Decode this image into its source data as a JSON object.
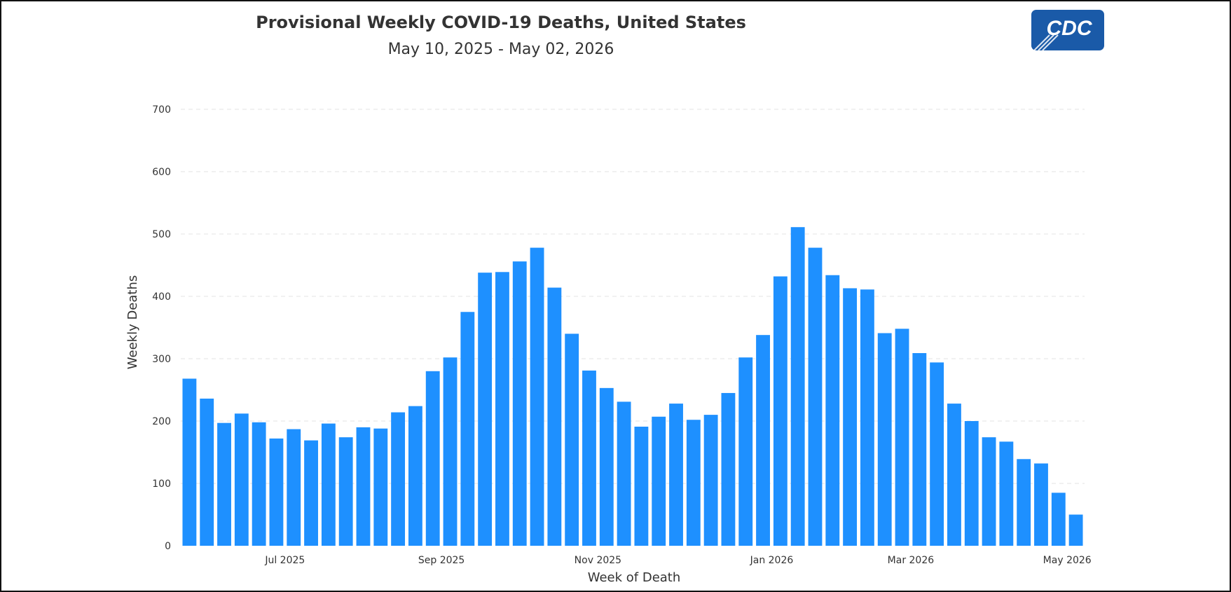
{
  "chart_data": {
    "type": "bar",
    "title": "Provisional Weekly COVID-19 Deaths, United States",
    "subtitle": "May 10, 2025 - May 02, 2026",
    "xlabel": "Week of Death",
    "ylabel": "Weekly Deaths",
    "ylim": [
      0,
      700
    ],
    "yticks": [
      0,
      100,
      200,
      300,
      400,
      500,
      600,
      700
    ],
    "grid": true,
    "bar_color": "#1e90ff",
    "x_start": "May 10, 2025",
    "x_end": "May 02, 2026",
    "x_ticks": [
      {
        "label": "Jul 2025",
        "after_bar": 6
      },
      {
        "label": "Sep 2025",
        "after_bar": 15
      },
      {
        "label": "Nov 2025",
        "after_bar": 24
      },
      {
        "label": "Jan 2026",
        "after_bar": 34
      },
      {
        "label": "Mar 2026",
        "after_bar": 42
      },
      {
        "label": "May 2026",
        "after_bar": 51
      }
    ],
    "values": [
      268,
      236,
      197,
      212,
      198,
      172,
      187,
      169,
      196,
      174,
      190,
      188,
      214,
      224,
      280,
      302,
      375,
      438,
      439,
      456,
      478,
      414,
      340,
      281,
      253,
      231,
      191,
      207,
      228,
      202,
      210,
      245,
      302,
      338,
      432,
      511,
      478,
      434,
      413,
      411,
      341,
      348,
      309,
      294,
      228,
      200,
      174,
      167,
      139,
      132,
      85,
      50
    ]
  },
  "logo": {
    "text": "CDC",
    "color": "#1a5aa8"
  }
}
